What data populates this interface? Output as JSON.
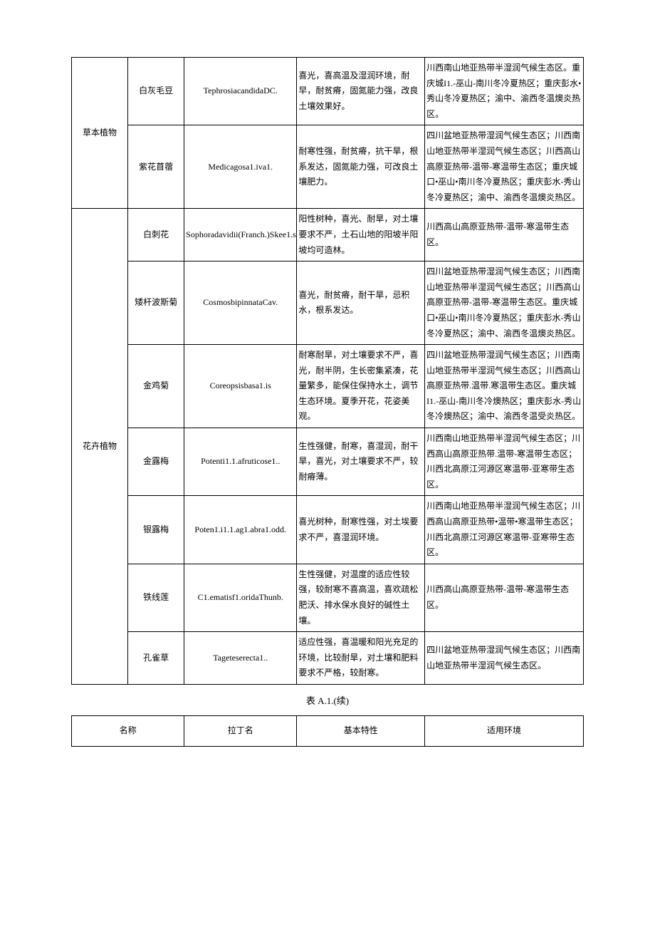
{
  "table1": {
    "categories": [
      {
        "name": "草本植物",
        "rows": [
          {
            "name": "白灰毛豆",
            "latin": "TephrosiacandidaDC.",
            "traits": "喜光，喜高温及湿润环境，耐早，耐贫瘠，固氮能力强，改良土壤效果好。",
            "env": "川西南山地亚热带半湿润气候生态区。重庆城I1.-巫山-南川冬冷夏热区；重庆彭水•秀山冬冷夏热区；渝中、渝西冬温燠炎热区。"
          },
          {
            "name": "紫花苜蓿",
            "latin": "Medicagosa1.iva1.",
            "traits": "耐寒性强，耐贫瘠，抗干旱，根系发达，固氮能力强，可改良土壤肥力。",
            "env": "四川盆地亚热带湿润气候生态区；川西南山地亚热带半湿润气候生态区；川西高山高原亚热带-温带-寒温带生态区；重庆城口•巫山•南川冬冷夏热区；重庆彭水-秀山冬冷夏热区；渝中、渝西冬温燠炎热区。"
          }
        ]
      },
      {
        "name": "花卉植物",
        "rows": [
          {
            "name": "白刺花",
            "latin": "Sophoradavidii(Franch.)Skee1.s",
            "traits": "阳性树种，喜光、耐旱，对土壤要求不严，土石山地的阳坡半阳坡均可造林。",
            "env": "川西高山高原亚热带-温带-寒温带生态区。"
          },
          {
            "name": "矮杆波斯菊",
            "latin": "CosmosbipinnataCav.",
            "traits": "喜光，耐贫瘠，耐干旱，忌积水，根系发达。",
            "env": "四川盆地亚热带湿润气候生态区；川西南山地亚热带半湿润气候生态区；川西高山高原亚热带-温带-寒温带生态区。重庆城口•巫山•南川冬冷夏热区；重庆彭水-秀山冬冷夏热区；渝中、渝西冬温燠炎热区。"
          },
          {
            "name": "金鸡菊",
            "latin": "Coreopsisbasa1.is",
            "traits": "耐寒耐旱，对土壤要求不严，喜光，耐半阴，生长密集紧凑，花量繁多，能保住保持水土，调节生态环境。夏季开花，花姿美观。",
            "env": "四川盆地亚热带湿润气候生态区；川西南山地亚热带半湿润气候生态区；川西高山高原亚热带.温带.寒温带生态区。重庆城I1.-巫山-南川冬冷燠热区；重庆彭水-秀山冬冷燠热区；渝中、渝西冬温受炎热区。"
          },
          {
            "name": "金露梅",
            "latin": "Potenti1.1.afruticose1..",
            "traits": "生性强健，耐寒，喜湿润，耐干旱，喜光，对土壤要求不严，较耐瘠薄。",
            "env": "川西南山地亚热带半湿润气候生态区；川西高山高原亚热带.温带-寒温带生态区；川西北高原江河源区寒温带-亚寒带生态区。"
          },
          {
            "name": "银露梅",
            "latin": "Poten1.i1.1.ag1.abra1.odd.",
            "traits": "喜光树种，耐寒性强，对土埃要求不严，喜湿润环境。",
            "env": "川西南山地亚热带半湿润气候生态区；川西高山高原亚热带•温带•寒温带生态区；川西北高原江河源区寒温带-亚寒带生态区。"
          },
          {
            "name": "铁线莲",
            "latin": "C1.ematisf1.oridaThunb.",
            "traits": "生性强健，对温度的适应性较强，较耐寒不喜高温，喜欢疏松肥沃、排水保水良好的碱性土壤。",
            "env": "川西高山高原亚热带-温带-寒温带生态区。"
          },
          {
            "name": "孔雀草",
            "latin": "Tageteserecta1..",
            "traits": "适应性强，喜温暖和阳光充足的环境，比较耐旱，对土壤和肥料要求不严格，较耐寒。",
            "env": "四川盆地亚热带湿润气候生态区；川西南山地亚热带半湿润气候生态区。"
          }
        ]
      }
    ]
  },
  "caption": "表 A.1.(续)",
  "table2": {
    "headers": [
      "名称",
      "拉丁名",
      "基本特性",
      "适用环境"
    ]
  }
}
